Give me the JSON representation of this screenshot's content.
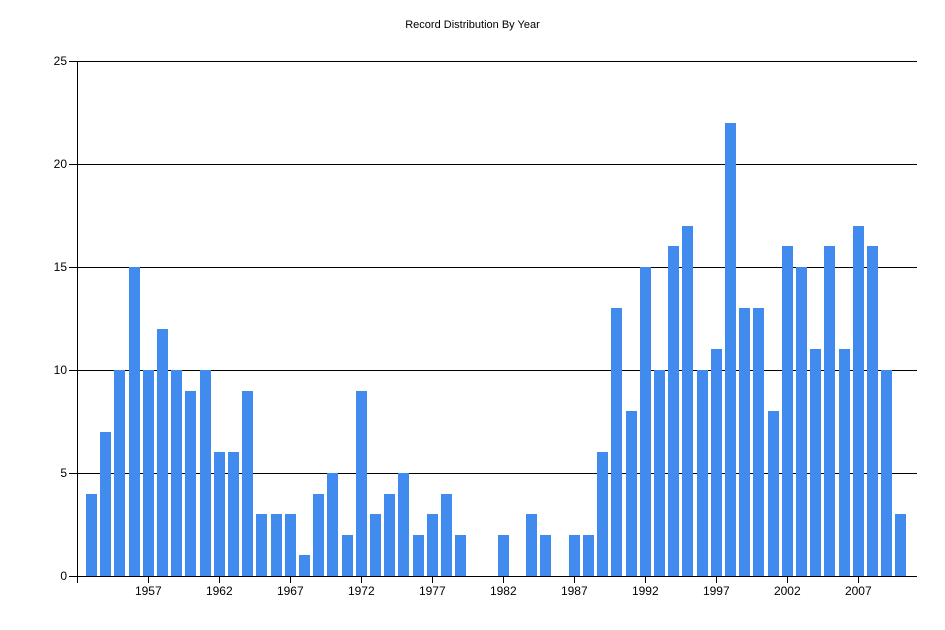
{
  "chart_data": {
    "type": "bar",
    "title": "Record Distribution By Year",
    "xlabel": "",
    "ylabel": "",
    "ylim": [
      0,
      25
    ],
    "yticks": [
      0,
      5,
      10,
      15,
      20,
      25
    ],
    "xtick_labels": [
      "1957",
      "1962",
      "1967",
      "1972",
      "1977",
      "1982",
      "1987",
      "1992",
      "1997",
      "2002",
      "2007"
    ],
    "grid": true,
    "bar_color": "#418bef",
    "categories": [
      1953,
      1954,
      1955,
      1956,
      1957,
      1958,
      1959,
      1960,
      1961,
      1962,
      1963,
      1964,
      1965,
      1966,
      1967,
      1968,
      1969,
      1970,
      1971,
      1972,
      1973,
      1974,
      1975,
      1976,
      1977,
      1978,
      1979,
      1980,
      1981,
      1982,
      1983,
      1984,
      1985,
      1986,
      1987,
      1988,
      1989,
      1990,
      1991,
      1992,
      1993,
      1994,
      1995,
      1996,
      1997,
      1998,
      1999,
      2000,
      2001,
      2002,
      2003,
      2004,
      2005,
      2006,
      2007,
      2008,
      2009,
      2010
    ],
    "values": [
      4,
      7,
      10,
      15,
      10,
      12,
      10,
      9,
      10,
      6,
      6,
      9,
      3,
      3,
      3,
      1,
      4,
      5,
      2,
      9,
      3,
      4,
      5,
      2,
      3,
      4,
      2,
      0,
      0,
      2,
      0,
      3,
      2,
      0,
      2,
      2,
      6,
      13,
      8,
      15,
      10,
      16,
      17,
      10,
      11,
      22,
      13,
      13,
      8,
      16,
      15,
      11,
      16,
      11,
      17,
      16,
      10,
      3
    ]
  }
}
